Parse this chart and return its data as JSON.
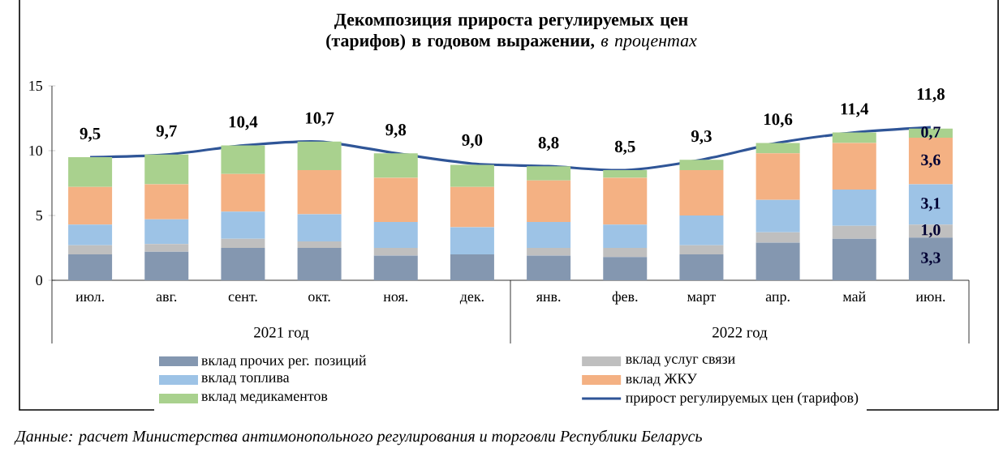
{
  "chart_data": {
    "type": "bar",
    "stacked": true,
    "title": "**Декомпозиция прироста регулируемых цен (тарифов) в годовом выражении,** *в процентах*",
    "categories": [
      "июл.",
      "авг.",
      "сент.",
      "окт.",
      "ноя.",
      "дек.",
      "янв.",
      "фев.",
      "март",
      "апр.",
      "май",
      "июн."
    ],
    "series": [
      {
        "name": "вклад прочих рег. позиций",
        "color": "#8497b0",
        "values": [
          2.0,
          2.2,
          2.5,
          2.5,
          1.9,
          2.0,
          1.9,
          1.8,
          2.0,
          2.9,
          3.2,
          3.3
        ],
        "value_labels": [
          null,
          null,
          null,
          null,
          null,
          null,
          null,
          null,
          null,
          null,
          null,
          "3,3"
        ]
      },
      {
        "name": "вклад услуг связи",
        "color": "#bfbfbf",
        "values": [
          0.7,
          0.6,
          0.7,
          0.5,
          0.6,
          0.0,
          0.6,
          0.7,
          0.7,
          0.8,
          1.0,
          1.0
        ],
        "value_labels": [
          null,
          null,
          null,
          null,
          null,
          null,
          null,
          null,
          null,
          null,
          null,
          "1,0"
        ]
      },
      {
        "name": "вклад топлива",
        "color": "#9dc3e6",
        "values": [
          1.6,
          1.9,
          2.1,
          2.1,
          2.0,
          2.1,
          2.0,
          1.8,
          2.3,
          2.5,
          2.8,
          3.1
        ],
        "value_labels": [
          null,
          null,
          null,
          null,
          null,
          null,
          null,
          null,
          null,
          null,
          null,
          "3,1"
        ]
      },
      {
        "name": "вклад ЖКУ",
        "color": "#f4b183",
        "values": [
          2.9,
          2.7,
          2.9,
          3.4,
          3.4,
          3.1,
          3.2,
          3.6,
          3.5,
          3.6,
          3.6,
          3.6
        ],
        "value_labels": [
          null,
          null,
          null,
          null,
          null,
          null,
          null,
          null,
          null,
          null,
          null,
          "3,6"
        ]
      },
      {
        "name": "вклад медикаментов",
        "color": "#a9d18e",
        "values": [
          2.3,
          2.3,
          2.2,
          2.2,
          1.9,
          1.7,
          1.1,
          0.6,
          0.8,
          0.8,
          0.8,
          0.7
        ],
        "value_labels": [
          null,
          null,
          null,
          null,
          null,
          null,
          null,
          null,
          null,
          null,
          null,
          "0,7"
        ]
      },
      {
        "name": "прирост регулируемых цен (тарифов)",
        "type": "line",
        "color": "#2f5597",
        "values": [
          9.5,
          9.7,
          10.4,
          10.7,
          9.8,
          9.0,
          8.8,
          8.5,
          9.3,
          10.6,
          11.4,
          11.8
        ],
        "value_labels": [
          "9,5",
          "9,7",
          "10,4",
          "10,7",
          "9,8",
          "9,0",
          "8,8",
          "8,5",
          "9,3",
          "10,6",
          "11,4",
          "11,8"
        ]
      }
    ],
    "ylim": [
      0,
      15
    ],
    "yticks": [
      0,
      5,
      10,
      15
    ],
    "legend": "bottom",
    "annotations": [
      "2021 год",
      "2022 год",
      "Данные: расчет Министерства антимонопольного регулирования и торговли Республики Беларусь"
    ]
  }
}
